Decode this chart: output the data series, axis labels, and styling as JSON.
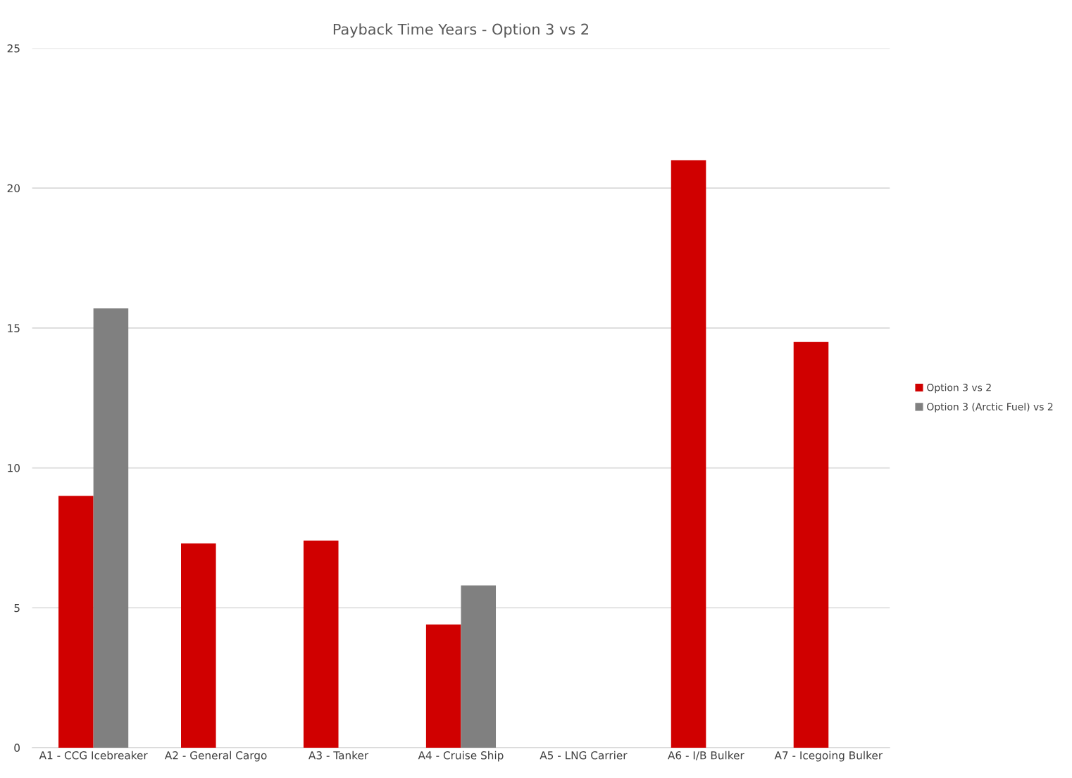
{
  "chart_data": {
    "type": "bar",
    "title": "Payback Time Years - Option 3 vs 2",
    "categories": [
      "A1 - CCG Icebreaker",
      "A2 - General Cargo",
      "A3 - Tanker",
      "A4 - Cruise Ship",
      "A5 - LNG Carrier",
      "A6 - I/B Bulker",
      "A7 - Icegoing Bulker"
    ],
    "series": [
      {
        "name": "Option 3 vs 2",
        "color": "#d00000",
        "values": [
          9.0,
          7.3,
          7.4,
          4.4,
          null,
          21.0,
          14.5
        ]
      },
      {
        "name": "Option 3 (Arctic Fuel) vs 2",
        "color": "#808080",
        "values": [
          15.7,
          null,
          null,
          5.8,
          null,
          null,
          null
        ]
      }
    ],
    "ylim": [
      0,
      25
    ],
    "yticks": [
      0,
      5,
      10,
      15,
      20,
      25
    ],
    "grid": "y",
    "legend": "right"
  }
}
